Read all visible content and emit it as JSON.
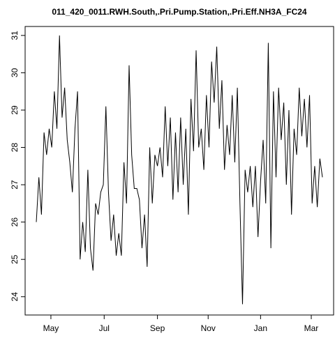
{
  "chart_data": {
    "type": "line",
    "title": "011_420_0011.RWH.South,.Pri.Pump.Station,.Pri.Eff.NH3A_FC24",
    "x": [
      0,
      3,
      6,
      9,
      12,
      15,
      18,
      21,
      24,
      27,
      30,
      33,
      36,
      39,
      42,
      45,
      48,
      51,
      54,
      57,
      60,
      63,
      66,
      69,
      72,
      75,
      78,
      81,
      84,
      87,
      90,
      93,
      96,
      99,
      102,
      105,
      108,
      111,
      114,
      117,
      120,
      123,
      126,
      129,
      132,
      135,
      138,
      141,
      144,
      147,
      150,
      153,
      156,
      159,
      162,
      165,
      168,
      171,
      174,
      177,
      180,
      183,
      186,
      189,
      192,
      195,
      198,
      201,
      204,
      207,
      210,
      213,
      216,
      219,
      222,
      225,
      228,
      231,
      234,
      237,
      240,
      243,
      246,
      249,
      252,
      255,
      258,
      261,
      264,
      267,
      270,
      273,
      276,
      279,
      282,
      285,
      288,
      291,
      294,
      297,
      300,
      303,
      306,
      309,
      312,
      315,
      318,
      321,
      324,
      327,
      330,
      333
    ],
    "series": [
      {
        "color": "#000000",
        "values": [
          26.0,
          27.2,
          26.2,
          28.4,
          27.8,
          28.5,
          28.0,
          29.5,
          28.5,
          31.0,
          28.8,
          29.6,
          28.2,
          27.6,
          26.8,
          28.5,
          29.5,
          25.0,
          26.0,
          25.2,
          27.4,
          25.3,
          24.7,
          26.5,
          26.2,
          26.8,
          27.0,
          29.1,
          26.8,
          25.5,
          26.2,
          25.1,
          25.7,
          25.1,
          27.6,
          26.5,
          30.2,
          27.8,
          26.9,
          26.9,
          26.6,
          25.3,
          26.2,
          24.8,
          28.0,
          26.5,
          27.8,
          27.5,
          28.0,
          27.2,
          29.1,
          27.5,
          28.8,
          26.6,
          28.4,
          26.8,
          28.8,
          27.0,
          28.5,
          26.2,
          29.3,
          27.9,
          30.6,
          28.0,
          28.5,
          27.4,
          29.4,
          28.0,
          30.3,
          29.2,
          30.7,
          28.5,
          29.8,
          27.4,
          28.6,
          27.8,
          29.4,
          27.6,
          29.6,
          26.5,
          23.8,
          27.4,
          26.8,
          27.5,
          26.4,
          27.5,
          25.6,
          27.1,
          28.2,
          26.5,
          30.8,
          25.3,
          29.5,
          27.2,
          29.6,
          28.2,
          29.2,
          27.0,
          29.0,
          26.2,
          28.5,
          27.8,
          29.6,
          28.3,
          29.3,
          28.0,
          29.4,
          26.5,
          27.5,
          26.4,
          27.7,
          27.2
        ]
      }
    ],
    "xlim": [
      -13,
      346
    ],
    "xticks": [
      {
        "value": 17,
        "label": "May"
      },
      {
        "value": 79,
        "label": "Jul"
      },
      {
        "value": 141,
        "label": "Sep"
      },
      {
        "value": 200,
        "label": "Nov"
      },
      {
        "value": 261,
        "label": "Jan"
      },
      {
        "value": 320,
        "label": "Mar"
      }
    ],
    "ylim": [
      23.51,
      31.24
    ],
    "yticks": [
      24,
      25,
      26,
      27,
      28,
      29,
      30,
      31
    ]
  }
}
